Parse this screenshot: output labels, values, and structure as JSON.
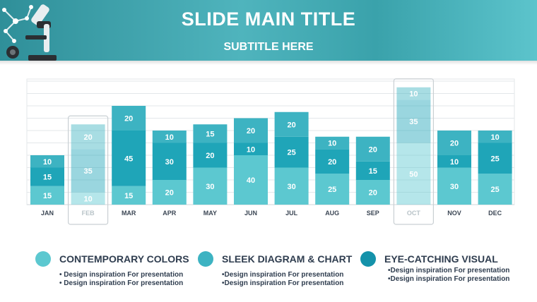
{
  "header": {
    "title": "SLIDE MAIN TITLE",
    "subtitle": "SUBTITLE HERE"
  },
  "chart_data": {
    "type": "bar",
    "stacked": true,
    "categories": [
      "JAN",
      "FEB",
      "MAR",
      "APR",
      "MAY",
      "JUN",
      "JUL",
      "AUG",
      "SEP",
      "OCT",
      "NOV",
      "DEC"
    ],
    "series": [
      {
        "values": [
          15,
          10,
          15,
          20,
          30,
          40,
          30,
          25,
          20,
          50,
          30,
          25
        ],
        "color": "#5cc8d0"
      },
      {
        "values": [
          15,
          35,
          45,
          30,
          20,
          10,
          25,
          20,
          15,
          35,
          10,
          25
        ],
        "color": "#1fa5b8"
      },
      {
        "values": [
          10,
          20,
          20,
          10,
          15,
          20,
          20,
          10,
          20,
          10,
          20,
          10
        ],
        "color": "#3db3c2"
      }
    ],
    "highlighted_categories": [
      "FEB",
      "OCT"
    ],
    "ylim": [
      0,
      100
    ],
    "grid": true
  },
  "legend": [
    {
      "title": "CONTEMPORARY COLORS",
      "color": "#5cc8d0",
      "lines": [
        "• Design inspiration For presentation",
        "• Design inspiration For presentation"
      ]
    },
    {
      "title": "SLEEK DIAGRAM & CHART",
      "color": "#3db3c2",
      "lines": [
        "•Design inspiration For presentation",
        "•Design inspiration For presentation"
      ]
    },
    {
      "title": "EYE-CATCHING VISUAL",
      "color": "#1492aa",
      "lines": [
        "•Design inspiration For presentation",
        "•Design inspiration For presentation"
      ]
    }
  ],
  "decor": {
    "image_icon": "microscope-icon"
  }
}
